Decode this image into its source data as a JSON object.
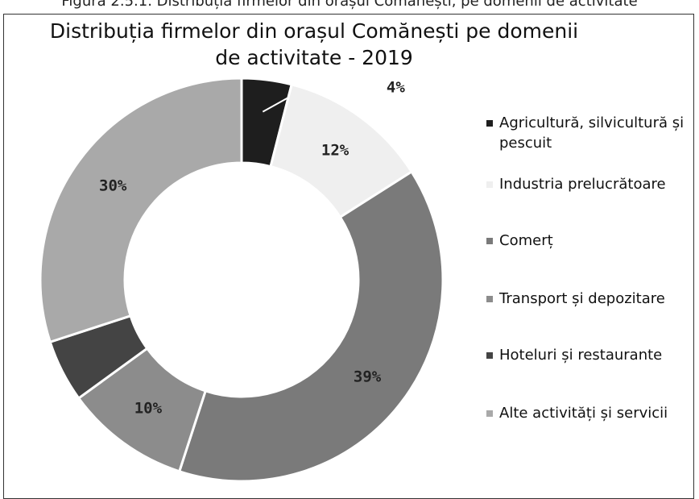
{
  "caption": "Figura 2.5.1. Distribuția firmelor din orașul Comănești, pe domenii de activitate",
  "chart_data": {
    "type": "donut",
    "title": "Distribuția firmelor din orașul Comănești pe domenii de activitate - 2019",
    "categories": [
      "Agricultură, silvicultură și pescuit",
      "Industria prelucrătoare",
      "Comerț",
      "Transport și depozitare",
      "Hoteluri și restaurante",
      "Alte activități și servicii"
    ],
    "values": [
      4,
      12,
      39,
      10,
      5,
      30
    ],
    "value_labels": [
      "4%",
      "12%",
      "39%",
      "10%",
      null,
      "30%"
    ],
    "colors": [
      "#1e1e1e",
      "#efefef",
      "#7a7a7a",
      "#8c8c8c",
      "#444444",
      "#a9a9a9"
    ],
    "legend": "right"
  }
}
